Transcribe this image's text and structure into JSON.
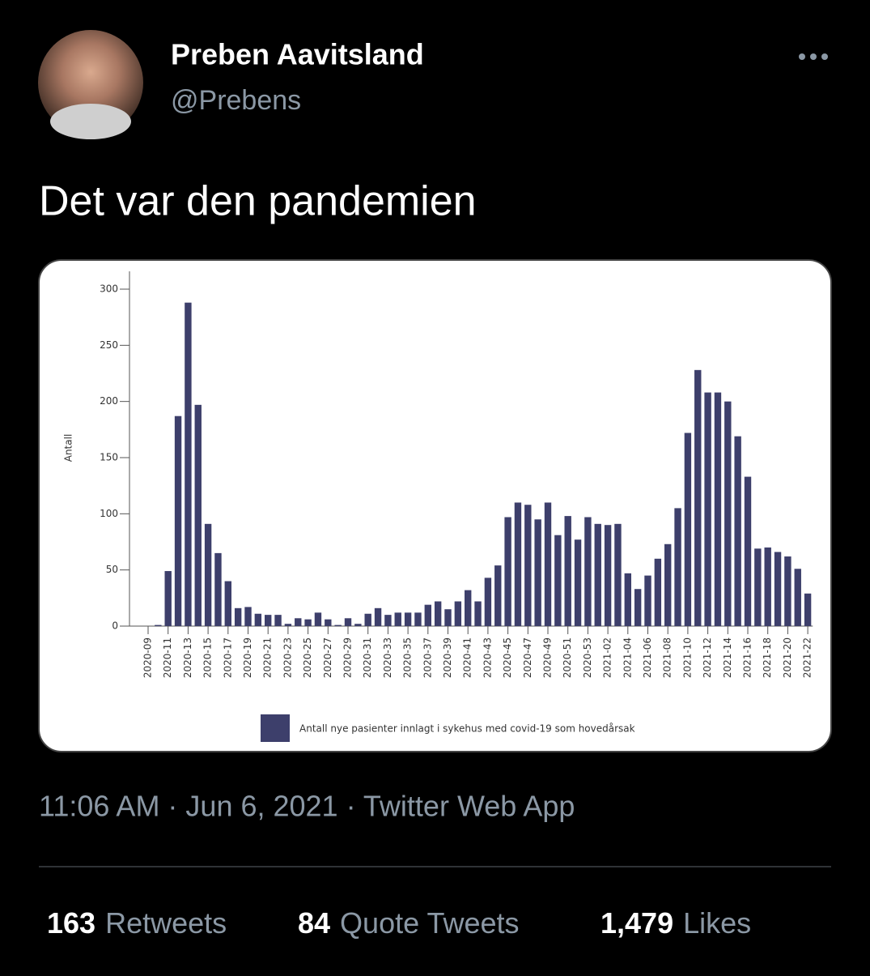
{
  "tweet": {
    "name": "Preben Aavitsland",
    "handle": "@Prebens",
    "text": "Det var den pandemien",
    "timestamp": "11:06 AM · Jun 6, 2021 · Twitter Web App",
    "stats": [
      {
        "count": "163",
        "label": "Retweets"
      },
      {
        "count": "84",
        "label": "Quote Tweets"
      },
      {
        "count": "1,479",
        "label": "Likes"
      }
    ]
  },
  "chart_data": {
    "type": "bar",
    "y_label": "Antall",
    "color": "#3d3f6b",
    "categories": [
      "2020-09",
      null,
      "2020-11",
      null,
      "2020-13",
      null,
      "2020-15",
      null,
      "2020-17",
      null,
      "2020-19",
      null,
      "2020-21",
      null,
      "2020-23",
      null,
      "2020-25",
      null,
      "2020-27",
      null,
      "2020-29",
      null,
      "2020-31",
      null,
      "2020-33",
      null,
      "2020-35",
      null,
      "2020-37",
      null,
      "2020-39",
      null,
      "2020-41",
      null,
      "2020-43",
      null,
      "2020-45",
      null,
      "2020-47",
      null,
      "2020-49",
      null,
      "2020-51",
      null,
      "2020-53",
      null,
      "2021-02",
      null,
      "2021-04",
      null,
      "2021-06",
      null,
      "2021-08",
      null,
      "2021-10",
      null,
      "2021-12",
      null,
      "2021-14",
      null,
      "2021-16",
      null,
      "2021-18",
      null,
      "2021-20",
      null,
      "2021-22"
    ],
    "series": [
      {
        "name": "Antall nye pasienter innlagt i sykehus med covid-19 som hovedårsak",
        "color": "#3d3f6b",
        "values": [
          0,
          1,
          49,
          187,
          288,
          197,
          91,
          65,
          40,
          16,
          17,
          11,
          10,
          10,
          2,
          7,
          6,
          12,
          6,
          1,
          7,
          2,
          11,
          16,
          10,
          12,
          12,
          12,
          19,
          22,
          15,
          22,
          32,
          22,
          43,
          54,
          97,
          110,
          108,
          95,
          110,
          81,
          98,
          77,
          97,
          91,
          90,
          91,
          47,
          33,
          45,
          60,
          73,
          105,
          172,
          228,
          208,
          208,
          200,
          169,
          133,
          69,
          70,
          66,
          62,
          51,
          29
        ]
      }
    ],
    "ylim": [
      0,
      300
    ],
    "yticks": [
      0,
      50,
      100,
      150,
      200,
      250,
      300
    ],
    "grid": false
  }
}
